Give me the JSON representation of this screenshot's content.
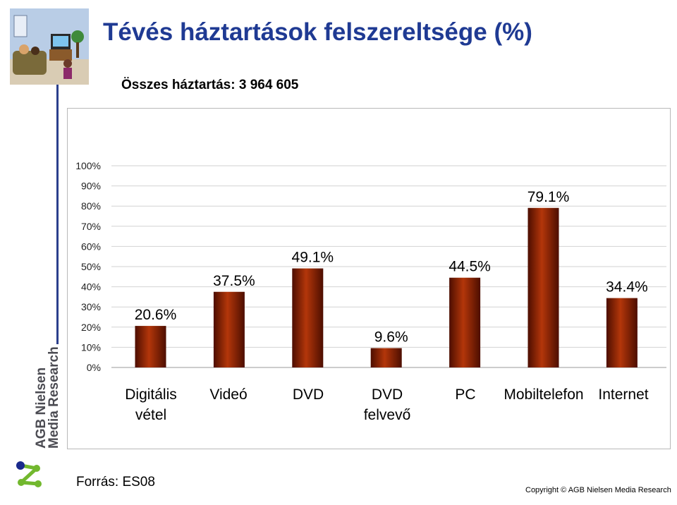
{
  "page": {
    "title": "Tévés háztartások felszereltsége (%)",
    "subtitle": "Összes háztartás: 3 964 605",
    "source": "Forrás: ES08",
    "copyright": "Copyright © AGB Nielsen Media Research",
    "logo_line1": "AGB Nielsen",
    "logo_line2": "Media Research"
  },
  "colors": {
    "title": "#1f3a93",
    "bar": "#8b2000",
    "bar_light": "#b3360a",
    "bar_dark": "#4d0e00",
    "logo_blue": "#1a2a8c",
    "logo_green": "#72b82e"
  },
  "chart_data": {
    "type": "bar",
    "title": "",
    "xlabel": "",
    "ylabel": "",
    "ylim": [
      0,
      100
    ],
    "yticks": [
      "0%",
      "10%",
      "20%",
      "30%",
      "40%",
      "50%",
      "60%",
      "70%",
      "80%",
      "90%",
      "100%"
    ],
    "grid": true,
    "legend": "none",
    "categories": [
      [
        "Digitális",
        "vétel"
      ],
      [
        "Videó"
      ],
      [
        "DVD"
      ],
      [
        "DVD",
        "felvevő"
      ],
      [
        "PC"
      ],
      [
        "Mobiltelefon"
      ],
      [
        "Internet"
      ]
    ],
    "values": [
      20.6,
      37.5,
      49.1,
      9.6,
      44.5,
      79.1,
      34.4
    ],
    "value_labels": [
      "20.6%",
      "37.5%",
      "49.1%",
      "9.6%",
      "44.5%",
      "79.1%",
      "34.4%"
    ]
  }
}
